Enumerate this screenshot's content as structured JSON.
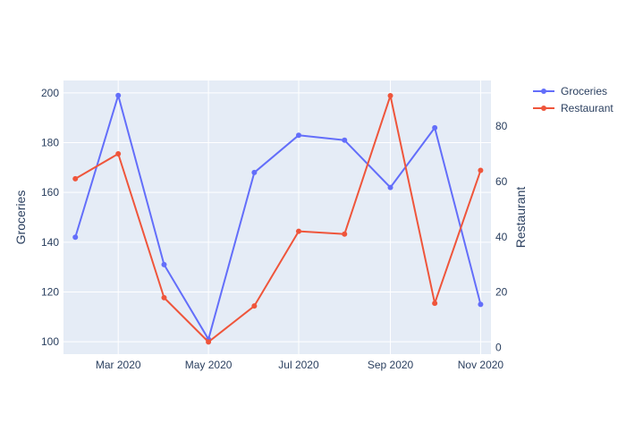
{
  "chart_data": {
    "type": "line",
    "x": [
      "2020-02-01",
      "2020-03-01",
      "2020-04-01",
      "2020-05-01",
      "2020-06-01",
      "2020-07-01",
      "2020-08-01",
      "2020-09-01",
      "2020-10-01",
      "2020-11-01"
    ],
    "xticks": [
      "Mar 2020",
      "May 2020",
      "Jul 2020",
      "Sep 2020",
      "Nov 2020"
    ],
    "xtick_dates": [
      "2020-03-01",
      "2020-05-01",
      "2020-07-01",
      "2020-09-01",
      "2020-11-01"
    ],
    "xlim": [
      "2020-01-24",
      "2020-11-08"
    ],
    "series": [
      {
        "name": "Groceries",
        "axis": "left",
        "color": "#636efa",
        "values": [
          142,
          199,
          131,
          101,
          168,
          183,
          181,
          162,
          186,
          115
        ]
      },
      {
        "name": "Restaurant",
        "axis": "right",
        "color": "#ef553b",
        "values": [
          61,
          70,
          18,
          2,
          15,
          42,
          41,
          91,
          16,
          64
        ]
      }
    ],
    "y_left": {
      "label": "Groceries",
      "ylim": [
        95,
        205
      ],
      "ticks": [
        100,
        120,
        140,
        160,
        180,
        200
      ]
    },
    "y_right": {
      "label": "Restaurant",
      "ylim": [
        -2.4,
        96.5
      ],
      "ticks": [
        0,
        20,
        40,
        60,
        80
      ]
    },
    "legend": {
      "placement": "top-right",
      "entries": [
        "Groceries",
        "Restaurant"
      ]
    },
    "grid": true,
    "colors": {
      "plot_bg": "#e5ecf6",
      "grid": "#ffffff",
      "text": "#2a3f5f"
    }
  }
}
